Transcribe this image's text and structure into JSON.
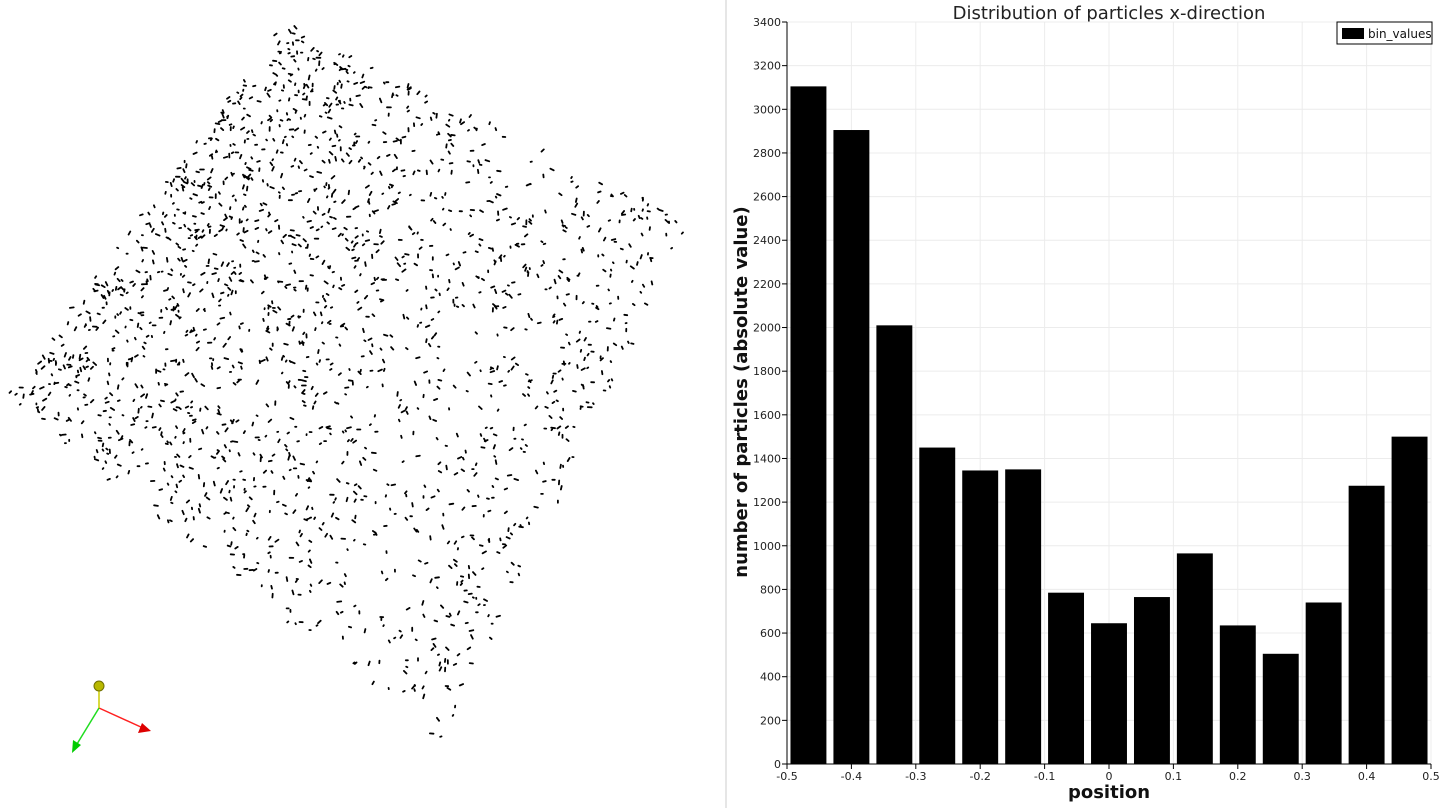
{
  "scatter_view": {
    "description_icon": "orientation-axes-icon",
    "axis_colors": {
      "x": "#ff2020",
      "y": "#20dd20",
      "z": "#cccc00"
    }
  },
  "chart_data": {
    "type": "bar",
    "title": "Distribution of particles x-direction",
    "xlabel": "position",
    "ylabel": "number of particles (absolute value)",
    "xlim": [
      -0.5,
      0.5
    ],
    "ylim": [
      0,
      3400
    ],
    "x_ticks": [
      "-0.5",
      "-0.4",
      "-0.3",
      "-0.2",
      "-0.1",
      "0",
      "0.1",
      "0.2",
      "0.3",
      "0.4",
      "0.5"
    ],
    "y_ticks": [
      "0",
      "200",
      "400",
      "600",
      "800",
      "1000",
      "1200",
      "1400",
      "1600",
      "1800",
      "2000",
      "2200",
      "2400",
      "2600",
      "2800",
      "3000",
      "3200",
      "3400"
    ],
    "grid": true,
    "legend_position": "top-right",
    "series": [
      {
        "name": "bin_values",
        "color": "#000000",
        "bin_centers": [
          -0.4667,
          -0.4,
          -0.3333,
          -0.2667,
          -0.2,
          -0.1333,
          -0.0667,
          0.0,
          0.0667,
          0.1333,
          0.2,
          0.2667,
          0.3333,
          0.4,
          0.4667
        ],
        "values": [
          3105,
          2905,
          2010,
          1450,
          1345,
          1350,
          785,
          645,
          765,
          965,
          635,
          505,
          740,
          1275,
          1500
        ]
      }
    ]
  }
}
